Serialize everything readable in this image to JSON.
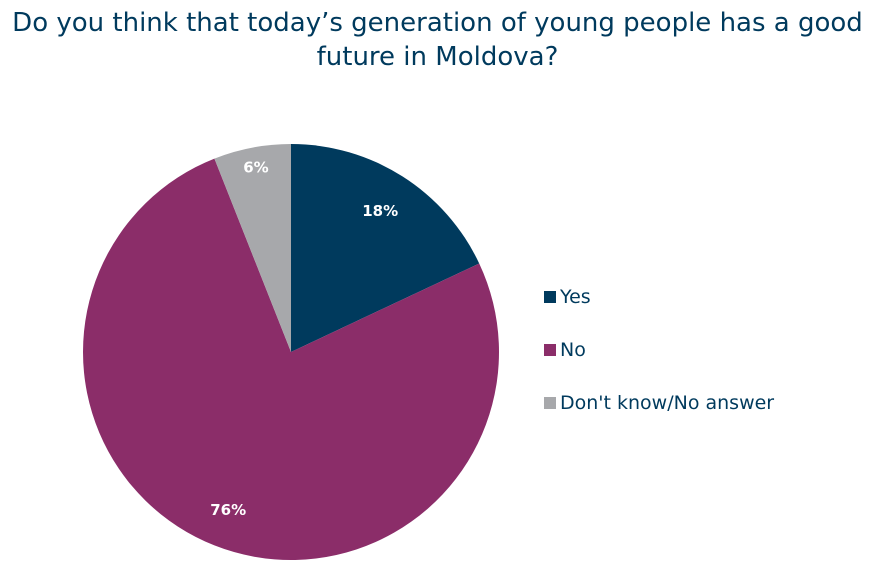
{
  "chart_data": {
    "type": "pie",
    "title_lines": [
      "Do you think that today’s generation of young people has a good",
      "future in Moldova?"
    ],
    "categories": [
      "Yes",
      "No",
      "Don't know/No answer"
    ],
    "values": [
      18,
      76,
      6
    ],
    "value_labels": [
      "18%",
      "76%",
      "6%"
    ],
    "colors": [
      "#003A5D",
      "#8B2D69",
      "#A7A8AB"
    ],
    "legend_position": "right"
  }
}
